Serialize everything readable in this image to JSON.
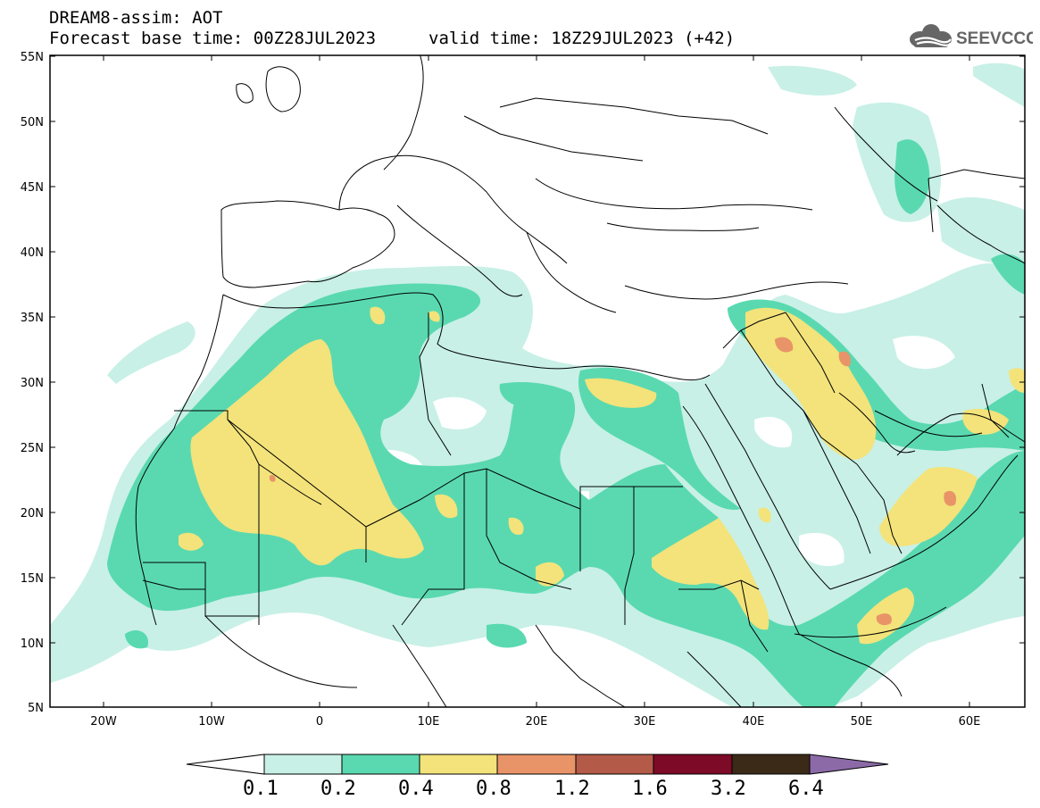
{
  "header": {
    "title": "DREAM8-assim: AOT",
    "base_time": "Forecast base time: 00Z28JUL2023",
    "valid_time": "valid time: 18Z29JUL2023 (+42)",
    "logo_text": "SEEVCCC"
  },
  "map": {
    "lat_labels": [
      "55N",
      "50N",
      "45N",
      "40N",
      "35N",
      "30N",
      "25N",
      "20N",
      "15N",
      "10N",
      "5N"
    ],
    "lon_labels": [
      "20W",
      "10W",
      "0",
      "10E",
      "20E",
      "30E",
      "40E",
      "50E",
      "60E"
    ]
  },
  "colorbar": {
    "levels": [
      "0.1",
      "0.2",
      "0.4",
      "0.8",
      "1.2",
      "1.6",
      "3.2",
      "6.4"
    ],
    "colors": [
      "#ffffff",
      "#c8f0e6",
      "#5ad9b0",
      "#f3e37a",
      "#e89468",
      "#b45a48",
      "#7d0a26",
      "#3c2a18",
      "#8c6aa8"
    ]
  },
  "legend": {
    "bin_colors": {
      "0.1-0.2": "#c8f0e6",
      "0.2-0.4": "#5ad9b0",
      "0.4-0.8": "#f3e37a",
      "0.8-1.2": "#e89468"
    }
  }
}
